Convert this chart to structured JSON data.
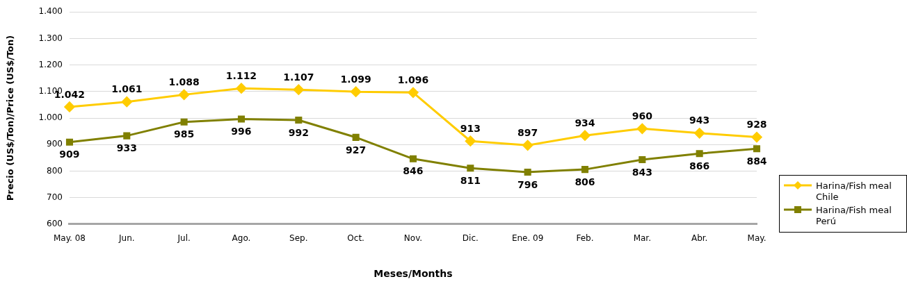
{
  "chart_data": {
    "type": "line",
    "xlabel": "Meses/Months",
    "ylabel": "Precio (US$/Ton)/Price (US$/Ton)",
    "categories": [
      "May. 08",
      "Jun.",
      "Jul.",
      "Ago.",
      "Sep.",
      "Oct.",
      "Nov.",
      "Dic.",
      "Ene. 09",
      "Feb.",
      "Mar.",
      "Abr.",
      "May."
    ],
    "series": [
      {
        "name": "Harina/Fish meal Chile",
        "color": "#ffcc00",
        "marker": "diamond",
        "values": [
          1042,
          1061,
          1088,
          1112,
          1107,
          1099,
          1096,
          913,
          897,
          934,
          960,
          943,
          928
        ],
        "value_labels": [
          "1.042",
          "1.061",
          "1.088",
          "1.112",
          "1.107",
          "1.099",
          "1.096",
          "913",
          "897",
          "934",
          "960",
          "943",
          "928"
        ]
      },
      {
        "name": "Harina/Fish meal Perú",
        "color": "#808000",
        "marker": "square",
        "values": [
          909,
          933,
          985,
          996,
          992,
          927,
          846,
          811,
          796,
          806,
          843,
          866,
          884
        ],
        "value_labels": [
          "909",
          "933",
          "985",
          "996",
          "992",
          "927",
          "846",
          "811",
          "796",
          "806",
          "843",
          "866",
          "884"
        ]
      }
    ],
    "ylim": [
      600,
      1400
    ],
    "yticks": [
      {
        "value": 600,
        "label": "600"
      },
      {
        "value": 700,
        "label": "700"
      },
      {
        "value": 800,
        "label": "800"
      },
      {
        "value": 900,
        "label": "900"
      },
      {
        "value": 1000,
        "label": "1.000"
      },
      {
        "value": 1100,
        "label": "1.100"
      },
      {
        "value": 1200,
        "label": "1.200"
      },
      {
        "value": 1300,
        "label": "1.300"
      },
      {
        "value": 1400,
        "label": "1.400"
      }
    ],
    "grid": "y",
    "legend": "right"
  }
}
